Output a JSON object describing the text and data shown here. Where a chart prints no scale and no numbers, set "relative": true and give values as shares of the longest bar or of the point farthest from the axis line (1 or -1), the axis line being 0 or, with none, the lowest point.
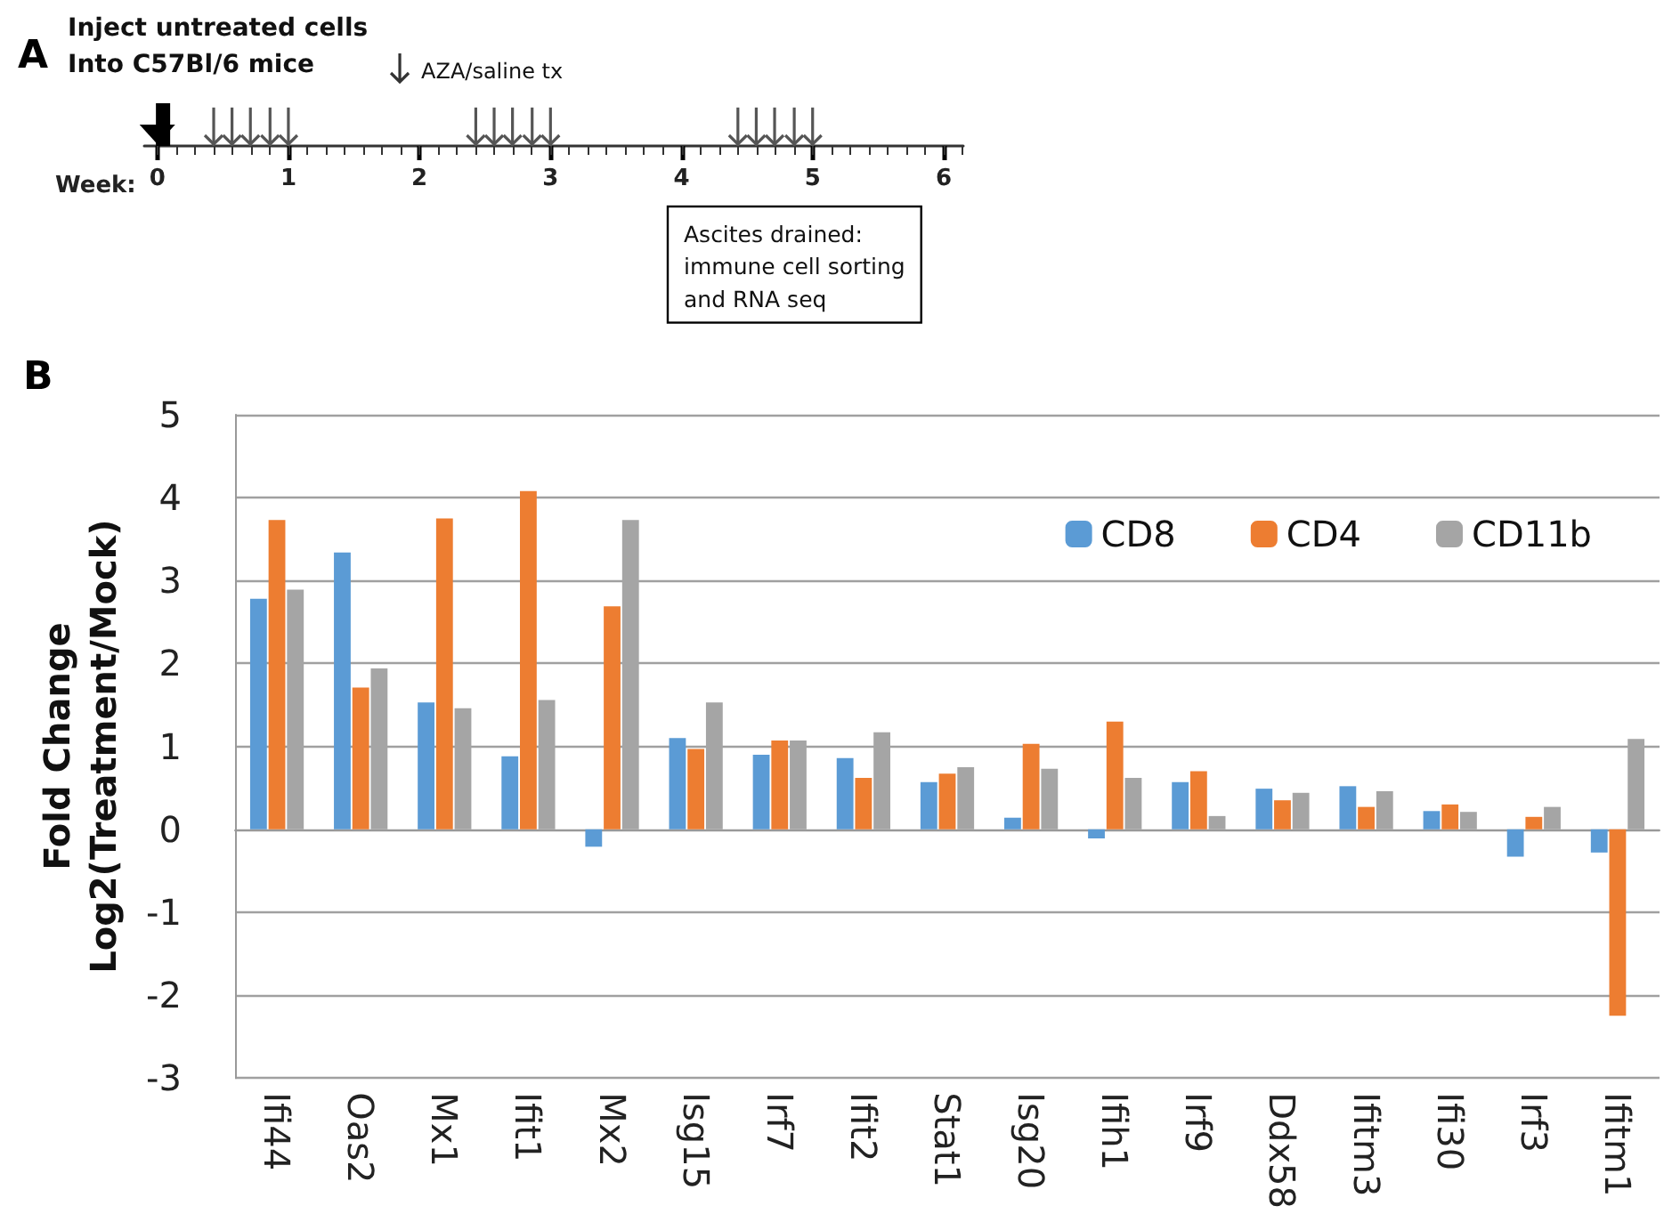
{
  "chart_data": [
    {
      "type": "bar",
      "title": "A",
      "xlabel": "Week:",
      "relative": true,
      "xlim": [
        -0.1,
        6.15
      ],
      "xticks": [
        0,
        1,
        2,
        3,
        4,
        5,
        6
      ],
      "series": [
        {
          "color": "#000000",
          "x": [
            0
          ],
          "values": [
            1
          ]
        },
        {
          "color": "#555555",
          "x": [
            0.43,
            0.57,
            0.71,
            0.86,
            1,
            2.43,
            2.57,
            2.71,
            2.86,
            3,
            4.43,
            4.57,
            4.71,
            4.86,
            5
          ],
          "values": [
            0.9,
            0.9,
            0.9,
            0.9,
            0.9,
            0.9,
            0.9,
            0.9,
            0.9,
            0.9,
            0.9,
            0.9,
            0.9,
            0.9,
            0.9
          ]
        }
      ],
      "annotations": [
        "Inject untreated cells\nInto C57Bl/6 mice",
        "AZA/saline tx",
        "Ascites drained:\nimmune cell sorting\nand RNA seq"
      ]
    },
    {
      "type": "bar",
      "title": "B",
      "ylabel": "Fold Change\nLog2(Treatment/Mock)",
      "categories": [
        "Ifi44",
        "Oas2",
        "Mx1",
        "Ifit1",
        "Mx2",
        "Isg15",
        "Irf7",
        "Ifit2",
        "Stat1",
        "Isg20",
        "Ifih1",
        "Irf9",
        "Ddx58",
        "Ifitm3",
        "Ifi30",
        "Irf3",
        "Ifitm1"
      ],
      "series": [
        {
          "name": "CD8",
          "color": "#5b9bd5",
          "values": [
            2.78,
            3.34,
            1.53,
            0.88,
            -0.21,
            1.1,
            0.9,
            0.86,
            0.57,
            0.14,
            -0.11,
            0.57,
            0.49,
            0.52,
            0.22,
            -0.33,
            -0.28
          ]
        },
        {
          "name": "CD4",
          "color": "#ed7d31",
          "values": [
            3.73,
            1.71,
            3.75,
            4.08,
            2.69,
            0.97,
            1.07,
            0.62,
            0.67,
            1.03,
            1.3,
            0.7,
            0.35,
            0.27,
            0.3,
            0.15,
            -2.25
          ]
        },
        {
          "name": "CD11b",
          "color": "#a5a5a5",
          "values": [
            2.89,
            1.94,
            1.46,
            1.56,
            3.73,
            1.53,
            1.07,
            1.17,
            0.75,
            0.73,
            0.62,
            0.16,
            0.44,
            0.46,
            0.21,
            0.27,
            1.09
          ]
        }
      ],
      "ylim": [
        -3,
        5
      ],
      "yticks": [
        -3,
        -2,
        -1,
        0,
        1,
        2,
        3,
        4,
        5
      ],
      "grid": "y",
      "legend": "top right"
    }
  ]
}
